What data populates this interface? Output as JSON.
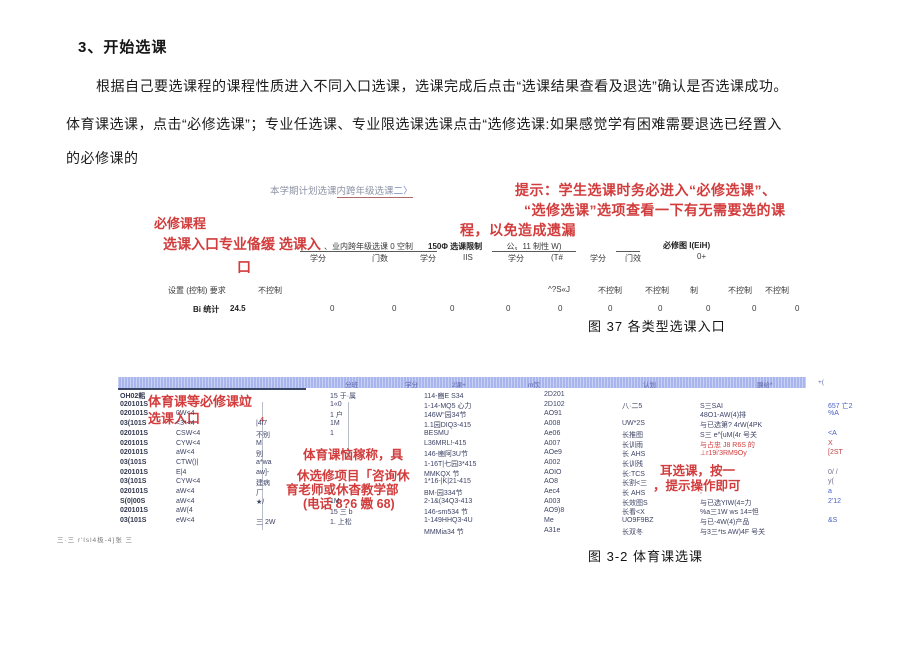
{
  "doc": {
    "heading": "3、开始选课",
    "paragraph1": "根据自己要选课程的课程性质进入不同入口选课，选课完成后点击“选课结果查看及退选”确认是否选课成功。",
    "paragraph2": "体育课选课，点击“必修选课”；专业任选课、专业限选课选课点击“选修选课:如果感觉学有困难需要退选已经置入",
    "paragraph3": "的必修课的"
  },
  "figure1": {
    "title_pre": "本学期计划选课",
    "title_link": "内跨年级选课",
    "title_arrow": "二〉",
    "tip_line1": "提示：学生选课时务必进入“必修选课”、",
    "tip_line2": "“选修选课”选项查看一下有无需要选的课",
    "tip_line3": "程，以免造成遗漏",
    "note_line1": "必修课程",
    "note_line2": "选课入口专业俻缓 选课入",
    "note_line3": "口",
    "group1": "、业内跨年级选课 0 空制",
    "group2": "150Φ 选课限制",
    "group3": "公〟11 制性 W)",
    "group4": "必修图 I(EiH)",
    "group4_sub": "0+",
    "subheaders": [
      "学分",
      "门数",
      "学分",
      "IIS",
      "学分",
      "(T#",
      "学分",
      "门效"
    ],
    "control_label": "设置 (控制) 要求",
    "control_value1": "不控制",
    "control_values": [
      "^?S«J",
      "不控制",
      "不控制",
      "制",
      "不控制",
      "不控制"
    ],
    "stats_label": "Bi 统计",
    "stats_first": "24.5",
    "stats_values": [
      "0",
      "0",
      "0",
      "0",
      "0",
      "0",
      "0",
      "0",
      "0",
      "0"
    ],
    "caption": "图 37 各类型选课入口"
  },
  "figure2": {
    "header_cells": [
      "分班",
      "学分",
      "2课+",
      "m饮",
      "认划",
      "腺给*",
      "+("
    ],
    "rows": [
      [
        "OH02耜",
        "",
        "",
        "15 于·属",
        "114-豳E S34",
        "2D201",
        "",
        "",
        ""
      ],
      [
        "020101S",
        "",
        "",
        "1«0",
        "1-14-MQ5 心力",
        "2D102",
        "八·二5",
        "S三SAI",
        {
          "t": "657 亡2",
          "c": "link"
        }
      ],
      [
        "020101S",
        "0W<4",
        "",
        "1 户",
        "146W“园34节",
        "AO91",
        "",
        "48O1-AW(4)排",
        {
          "t": "%A",
          "c": "link"
        }
      ],
      [
        "03(101S",
        "<3*<4",
        "|4i7",
        "1M",
        "1.1园DIQ3-415",
        "A008",
        "UW*2S",
        "与已选第? 4rW(4PK",
        ""
      ],
      [
        "020101S",
        "CSW<4",
        "不别",
        "1",
        "BESMU",
        "Ae06",
        "长推图",
        "S三 e^[uM(4r 号关",
        {
          "t": "<A",
          "c": "link"
        }
      ],
      [
        "020101S",
        "CYW<4",
        "M",
        "",
        "L36MRL!-415",
        "A007",
        "长训雨",
        {
          "t": "与占忠 J8 R6S 的",
          "c": "red"
        },
        {
          "t": "X",
          "c": "redlink"
        }
      ],
      [
        "020101S",
        "aW<4",
        "别",
        "",
        "146-豳阿3U节",
        "AOe9",
        "长 AHS",
        {
          "t": "⊥r19i'3RM9Oy",
          "c": "red"
        },
        {
          "t": "[2ST",
          "c": "redlink"
        }
      ],
      [
        "03(101S",
        "CTW()|",
        "a*wa",
        "",
        "1-16T|七园3*415",
        "A002",
        "长训残",
        "",
        ""
      ],
      [
        "020101S",
        "E|4",
        "aw]-",
        "",
        "MMKQX 节",
        "AOIO",
        "长:TCS",
        "",
        {
          "t": "0/ /",
          "c": "dim"
        }
      ],
      [
        "03(101S",
        "CYW<4",
        "建病",
        "",
        "1*16-|K|21-415",
        "AO8",
        "长割<三",
        "",
        {
          "t": "y(",
          "c": "dim"
        }
      ],
      [
        "020101S",
        "aW<4",
        "厂",
        "",
        "BM-园334节",
        "Aec4",
        "长 AHS",
        ",",
        {
          "t": "a",
          "c": "link"
        }
      ],
      [
        "S(0|00S",
        "aW<4",
        "★/",
        "1M",
        "2-1&(34Q3-413",
        "A003",
        "长效图S",
        "与已选YIW(4=力",
        {
          "t": "2'12",
          "c": "link"
        }
      ],
      [
        "020101S",
        "aW(4",
        "",
        "15 三 b",
        "146-sm534 节",
        "AO9)8",
        "长看<X",
        "%a三1W ws 14=怛",
        ""
      ],
      [
        "03(101S",
        "eW<4",
        "三 2W",
        "1. 上松",
        "1-149HHQ3-4U",
        "Me",
        "UO9F9BZ",
        "与已-4W(4)产品",
        {
          "t": "&S",
          "c": "link"
        }
      ],
      [
        "",
        "",
        "",
        "",
        "MMMia34 节",
        "A31e",
        "长双冬",
        "与3三*ts AW)4F 号关",
        ""
      ]
    ],
    "note_topleft1": "体育课等必修课竝",
    "note_topleft2": "选课入口",
    "note_small4": "4",
    "note_center1": "体育课恼稼称，具",
    "note_center2": "休选修项目「咨询休",
    "note_center3": "育老师或休杳教学部",
    "note_center4": "(电话 8?6 嫐 68)",
    "note_right1": "耳选课，按一",
    "note_right2": "，提示操作即可",
    "footnote": "三·三 r'lsl4极-4]张 三",
    "caption": "图 3-2 体育课选课"
  },
  "colors": {
    "annotation_red": "#d23c3c",
    "link_blue": "#4a62c4",
    "band_blue": "#a9b5ed"
  }
}
